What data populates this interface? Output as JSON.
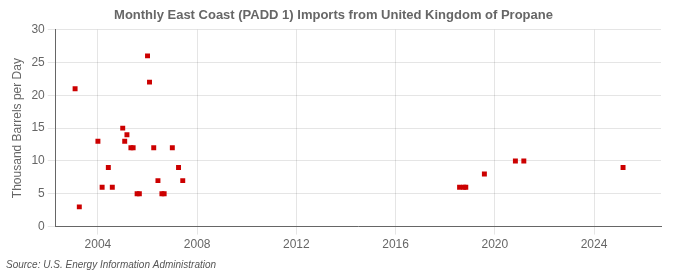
{
  "chart_data": {
    "type": "scatter",
    "title": "Monthly East Coast (PADD 1) Imports from United Kingdom of Propane",
    "ylabel": "Thousand Barrels per Day",
    "annotations": [
      "Source: U.S. Energy Information Administration"
    ],
    "x": [
      2003.08,
      2003.25,
      2004.0,
      2004.17,
      2004.42,
      2004.58,
      2005.0,
      2005.08,
      2005.17,
      2005.33,
      2005.42,
      2005.58,
      2005.67,
      2006.0,
      2006.08,
      2006.25,
      2006.42,
      2006.58,
      2006.67,
      2007.0,
      2007.25,
      2007.42,
      2018.58,
      2018.75,
      2018.83,
      2019.58,
      2020.83,
      2021.17,
      2025.17
    ],
    "values": [
      21,
      3,
      13,
      6,
      9,
      6,
      15,
      13,
      14,
      12,
      12,
      5,
      5,
      26,
      22,
      12,
      7,
      5,
      5,
      12,
      9,
      7,
      6,
      6,
      6,
      8,
      10,
      10,
      9
    ],
    "color": "#cc0000",
    "marker": "square",
    "xlim": [
      2002.3,
      2026.7
    ],
    "xticks": [
      2004,
      2008,
      2012,
      2016,
      2020,
      2024
    ],
    "ylim": [
      0,
      30
    ],
    "yticks": [
      0,
      5,
      10,
      15,
      20,
      25,
      30
    ],
    "grid": true
  }
}
